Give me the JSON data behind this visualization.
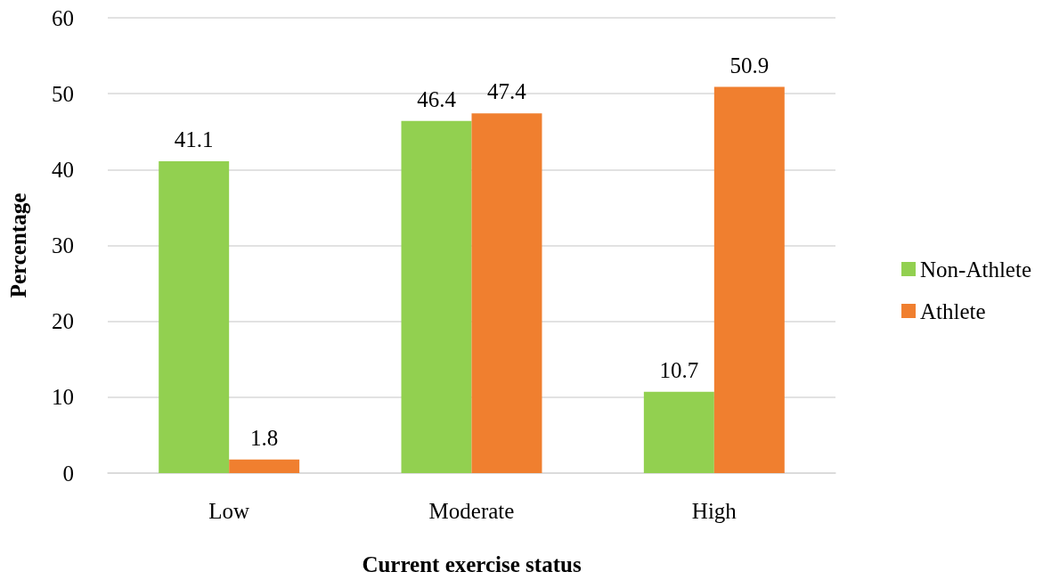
{
  "chart_data": {
    "type": "bar",
    "xlabel": "Current exercise status",
    "ylabel": "Percentage",
    "categories": [
      "Low",
      "Moderate",
      "High"
    ],
    "series": [
      {
        "name": "Non-Athlete",
        "color": "#92d050",
        "values": [
          41.1,
          46.4,
          10.7
        ]
      },
      {
        "name": "Athlete",
        "color": "#f07f2f",
        "values": [
          1.8,
          47.4,
          50.9
        ]
      }
    ],
    "ylim": [
      0,
      60
    ],
    "yticks": [
      0,
      10,
      20,
      30,
      40,
      50,
      60
    ],
    "grid": "y",
    "legend": "right",
    "data_labels": true
  }
}
